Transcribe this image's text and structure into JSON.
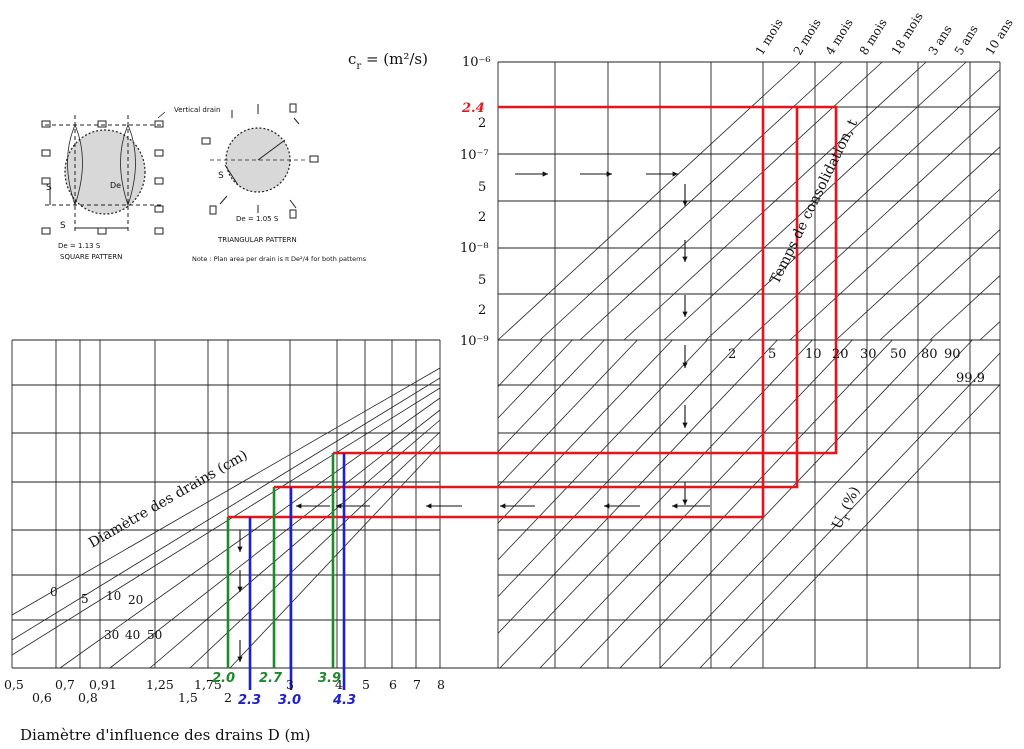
{
  "cr_label": "c",
  "cr_sub": "r",
  "cr_unit": " = (m²/s)",
  "cr_ticks": [
    "10⁻⁶",
    "2.4",
    "2",
    "10⁻⁷",
    "5",
    "2",
    "10⁻⁸",
    "5",
    "2",
    "10⁻⁹"
  ],
  "time_axis_label": "Temps de consolidation, t",
  "time_labels": [
    "1 mois",
    "2 mois",
    "4 mois",
    "8 mois",
    "18 mois",
    "3 ans",
    "5 ans",
    "10 ans"
  ],
  "u_axis_label": "U",
  "u_axis_sub": "r",
  "u_axis_unit": " (%)",
  "u_labels": [
    "2",
    "5",
    "10",
    "20",
    "30",
    "50",
    "80",
    "90",
    "99.9"
  ],
  "drain_axis_label": "Diamètre des drains (cm)",
  "drain_labels": [
    "0",
    "5",
    "10",
    "20",
    "30",
    "40",
    "50"
  ],
  "d_axis_label": "Diamètre d'influence des drains D (m)",
  "d_ticks_top": [
    "0,5",
    "0,7",
    "0,91",
    "1,25",
    "1,75",
    "3",
    "4",
    "5",
    "6",
    "7",
    "8"
  ],
  "d_ticks_bottom": [
    "0,6",
    "0,8",
    "1,5",
    "2"
  ],
  "green_values": [
    "2.0",
    "2.7",
    "3.9"
  ],
  "blue_values": [
    "2.3",
    "3.0",
    "4.3"
  ],
  "inset": {
    "vertical_drain": "Vertical drain",
    "square_formula": "De = 1.13 S",
    "square_pattern": "SQUARE PATTERN",
    "triangular_formula": "De = 1.05 S",
    "triangular_pattern": "TRIANGULAR PATTERN",
    "note": "Note : Plan area per drain is π De²/4 for both patterns",
    "s_label": "S",
    "de_label": "De"
  },
  "colors": {
    "red": "#e8141c",
    "green": "#1d8a2a",
    "blue": "#1d1fd0"
  }
}
